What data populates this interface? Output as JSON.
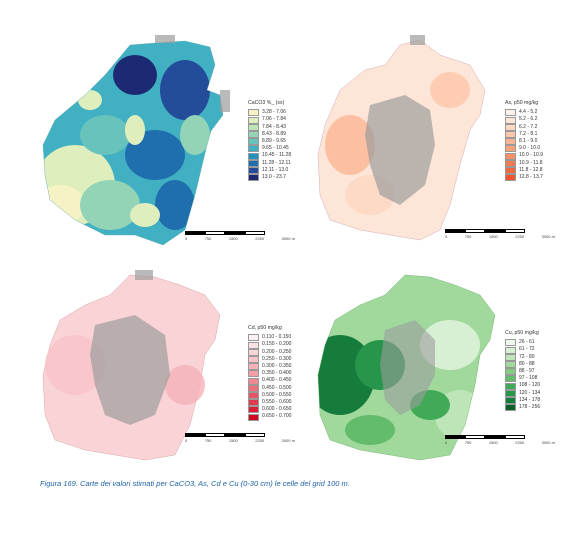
{
  "maps": [
    {
      "id": "caco3",
      "legend_title": "CaCO3 %_ (ss)",
      "classes": [
        {
          "label": "3.28 - 7.06",
          "color": "#f5f3c4"
        },
        {
          "label": "7.06 - 7.84",
          "color": "#dfeebd"
        },
        {
          "label": "7.84 - 8.43",
          "color": "#bde3b6"
        },
        {
          "label": "8.43 - 8.89",
          "color": "#93d3b6"
        },
        {
          "label": "8.89 - 9.65",
          "color": "#67c3bb"
        },
        {
          "label": "9.65 - 10.45",
          "color": "#41b0c2"
        },
        {
          "label": "10.45 - 11.28",
          "color": "#2592bd"
        },
        {
          "label": "11.28 - 12.11",
          "color": "#1f6fae"
        },
        {
          "label": "12.11 - 13.0",
          "color": "#234c9a"
        },
        {
          "label": "13.0 - 23.7",
          "color": "#1b2a73"
        }
      ],
      "scale_ticks": [
        "0",
        "750",
        "1500",
        "2250",
        "3000 m"
      ]
    },
    {
      "id": "as",
      "legend_title": "As, p50 mg/kg",
      "classes": [
        {
          "label": "4.4 - 5.2",
          "color": "#fdf3ec"
        },
        {
          "label": "5.2 - 6.2",
          "color": "#fde6d8"
        },
        {
          "label": "6.2 - 7.2",
          "color": "#fcd7c2"
        },
        {
          "label": "7.2 - 8.1",
          "color": "#fcc6aa"
        },
        {
          "label": "8.1 - 9.0",
          "color": "#fbb594"
        },
        {
          "label": "9.0 - 10.0",
          "color": "#f9a27c"
        },
        {
          "label": "10.0 - 10.9",
          "color": "#f79066"
        },
        {
          "label": "10.9 - 11.8",
          "color": "#f47c51"
        },
        {
          "label": "11.8 - 12.8",
          "color": "#f16a3f"
        },
        {
          "label": "12.8 - 13.7",
          "color": "#ec5530"
        }
      ],
      "scale_ticks": [
        "0",
        "750",
        "1500",
        "2250",
        "3000 m"
      ]
    },
    {
      "id": "cd",
      "legend_title": "Cd, p50 mg/kg",
      "classes": [
        {
          "label": "0.110 - 0.150",
          "color": "#fdf0f0"
        },
        {
          "label": "0.150 - 0.200",
          "color": "#fce2e3"
        },
        {
          "label": "0.200 - 0.250",
          "color": "#fad3d6"
        },
        {
          "label": "0.250 - 0.300",
          "color": "#f8c3c8"
        },
        {
          "label": "0.300 - 0.350",
          "color": "#f5b2b9"
        },
        {
          "label": "0.350 - 0.400",
          "color": "#f29ea7"
        },
        {
          "label": "0.400 - 0.450",
          "color": "#ee8893"
        },
        {
          "label": "0.450 - 0.500",
          "color": "#ea707d"
        },
        {
          "label": "0.500 - 0.550",
          "color": "#e55466"
        },
        {
          "label": "0.550 - 0.600",
          "color": "#e03a4e"
        },
        {
          "label": "0.600 - 0.650",
          "color": "#da2038"
        },
        {
          "label": "0.650 - 0.700",
          "color": "#d10a24"
        }
      ],
      "scale_ticks": [
        "0",
        "750",
        "1500",
        "2250",
        "3000 m"
      ]
    },
    {
      "id": "cu",
      "legend_title": "Cu, p50 mg/kg",
      "classes": [
        {
          "label": "26 - 61",
          "color": "#eef8ec"
        },
        {
          "label": "61 - 72",
          "color": "#d7efd3"
        },
        {
          "label": "72 - 80",
          "color": "#bde5b8"
        },
        {
          "label": "80 - 88",
          "color": "#a1d99d"
        },
        {
          "label": "88 - 97",
          "color": "#83cc82"
        },
        {
          "label": "97 - 108",
          "color": "#63bc6b"
        },
        {
          "label": "108 - 120",
          "color": "#41aa57"
        },
        {
          "label": "120 - 134",
          "color": "#27954a"
        },
        {
          "label": "134 - 178",
          "color": "#167c3b"
        },
        {
          "label": "178 - 256",
          "color": "#0b5f2b"
        }
      ],
      "scale_ticks": [
        "0",
        "750",
        "1500",
        "2250",
        "3000 m"
      ]
    }
  ],
  "colors": {
    "urban_gray": "#9c9c9c",
    "caption_blue": "#1e63a8"
  },
  "caption": "Figura 169. Carte dei valori stimati per CaCO3, As, Cd e Cu (0-30 cm) le celle del grid 100 m."
}
